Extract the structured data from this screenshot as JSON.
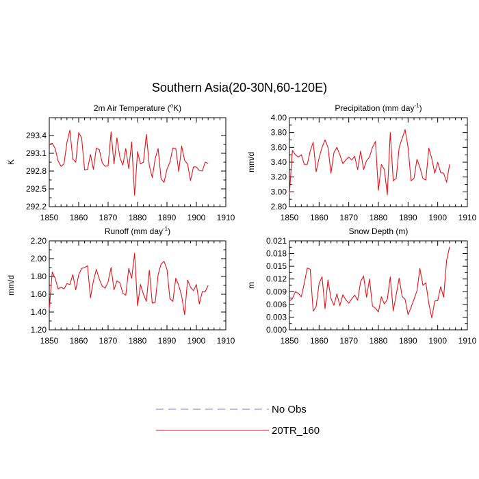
{
  "figure": {
    "title": "Southern Asia(20-30N,60-120E)"
  },
  "legend": [
    {
      "name": "No Obs",
      "color": "#7777ee",
      "style": "dashed"
    },
    {
      "name": "20TR_160",
      "color": "#e8121b",
      "style": "solid"
    }
  ],
  "chart_data": [
    {
      "type": "line",
      "title": "2m Air Temperature (",
      "title_sup": "o",
      "title_end": "K)",
      "xlabel": "",
      "ylabel": "K",
      "xlim": [
        1850,
        1910
      ],
      "ylim": [
        292.2,
        293.7
      ],
      "xticks": [
        1850,
        1860,
        1870,
        1880,
        1890,
        1900,
        1910
      ],
      "xtick_labels": [
        "1850",
        "1860",
        "1870",
        "1880",
        "1890",
        "1900",
        "1910"
      ],
      "yticks": [
        292.2,
        292.5,
        292.8,
        293.1,
        293.4
      ],
      "ytick_labels": [
        "292.2",
        "292.5",
        "292.8",
        "293.1",
        "293.4"
      ],
      "x": [
        1850,
        1851,
        1852,
        1853,
        1854,
        1855,
        1856,
        1857,
        1858,
        1859,
        1860,
        1861,
        1862,
        1863,
        1864,
        1865,
        1866,
        1867,
        1868,
        1869,
        1870,
        1871,
        1872,
        1873,
        1874,
        1875,
        1876,
        1877,
        1878,
        1879,
        1880,
        1881,
        1882,
        1883,
        1884,
        1885,
        1886,
        1887,
        1888,
        1889,
        1890,
        1891,
        1892,
        1893,
        1894,
        1895,
        1896,
        1897,
        1898,
        1899,
        1900,
        1901,
        1902,
        1903,
        1904
      ],
      "series": [
        {
          "name": "20TR_160",
          "values": [
            293.25,
            293.27,
            293.18,
            292.97,
            292.88,
            292.92,
            293.28,
            293.49,
            293.0,
            292.95,
            293.45,
            293.36,
            292.82,
            292.83,
            293.08,
            292.83,
            293.19,
            293.16,
            292.94,
            292.88,
            292.89,
            293.46,
            292.92,
            293.36,
            293.03,
            292.9,
            293.18,
            292.84,
            293.29,
            292.39,
            293.13,
            292.92,
            292.95,
            293.42,
            292.89,
            292.69,
            293.01,
            293.18,
            292.67,
            292.61,
            292.83,
            292.95,
            293.19,
            293.18,
            292.79,
            293.22,
            292.98,
            292.92,
            292.64,
            292.87,
            292.87,
            292.81,
            292.8,
            292.95,
            292.93
          ]
        }
      ]
    },
    {
      "type": "line",
      "title": "Precipitation (mm day",
      "title_sup": "-1",
      "title_end": ")",
      "xlabel": "",
      "ylabel": "mm/d",
      "xlim": [
        1850,
        1910
      ],
      "ylim": [
        2.8,
        4.0
      ],
      "xticks": [
        1850,
        1860,
        1870,
        1880,
        1890,
        1900,
        1910
      ],
      "xtick_labels": [
        "1850",
        "1860",
        "1870",
        "1880",
        "1890",
        "1900",
        "1910"
      ],
      "yticks": [
        2.8,
        3.0,
        3.2,
        3.4,
        3.6,
        3.8,
        4.0
      ],
      "ytick_labels": [
        "2.80",
        "3.00",
        "3.20",
        "3.40",
        "3.60",
        "3.80",
        "4.00"
      ],
      "x": [
        1850,
        1851,
        1852,
        1853,
        1854,
        1855,
        1856,
        1857,
        1858,
        1859,
        1860,
        1861,
        1862,
        1863,
        1864,
        1865,
        1866,
        1867,
        1868,
        1869,
        1870,
        1871,
        1872,
        1873,
        1874,
        1875,
        1876,
        1877,
        1878,
        1879,
        1880,
        1881,
        1882,
        1883,
        1884,
        1885,
        1886,
        1887,
        1888,
        1889,
        1890,
        1891,
        1892,
        1893,
        1894,
        1895,
        1896,
        1897,
        1898,
        1899,
        1900,
        1901,
        1902,
        1903,
        1904
      ],
      "series": [
        {
          "name": "20TR_160",
          "values": [
            2.97,
            3.56,
            3.5,
            3.47,
            3.5,
            3.37,
            3.37,
            3.55,
            3.67,
            3.27,
            3.46,
            3.6,
            3.7,
            3.6,
            3.25,
            3.53,
            3.6,
            3.5,
            3.38,
            3.43,
            3.47,
            3.43,
            3.48,
            3.3,
            3.55,
            3.3,
            3.42,
            3.47,
            3.6,
            3.68,
            3.02,
            3.37,
            3.3,
            2.96,
            3.8,
            3.15,
            3.18,
            3.6,
            3.72,
            3.84,
            3.6,
            3.15,
            3.18,
            3.44,
            3.33,
            3.18,
            3.16,
            3.59,
            3.45,
            3.25,
            3.4,
            3.26,
            3.25,
            3.13,
            3.37
          ]
        }
      ]
    },
    {
      "type": "line",
      "title": "Runoff (mm day",
      "title_sup": "-1",
      "title_end": ")",
      "xlabel": "",
      "ylabel": "mm/d",
      "xlim": [
        1850,
        1910
      ],
      "ylim": [
        1.2,
        2.2
      ],
      "xticks": [
        1850,
        1860,
        1870,
        1880,
        1890,
        1900,
        1910
      ],
      "xtick_labels": [
        "1850",
        "1860",
        "1870",
        "1880",
        "1890",
        "1900",
        "1910"
      ],
      "yticks": [
        1.2,
        1.4,
        1.6,
        1.8,
        2.0,
        2.2
      ],
      "ytick_labels": [
        "1.20",
        "1.40",
        "1.60",
        "1.80",
        "2.00",
        "2.20"
      ],
      "x": [
        1850,
        1851,
        1852,
        1853,
        1854,
        1855,
        1856,
        1857,
        1858,
        1859,
        1860,
        1861,
        1862,
        1863,
        1864,
        1865,
        1866,
        1867,
        1868,
        1869,
        1870,
        1871,
        1872,
        1873,
        1874,
        1875,
        1876,
        1877,
        1878,
        1879,
        1880,
        1881,
        1882,
        1883,
        1884,
        1885,
        1886,
        1887,
        1888,
        1889,
        1890,
        1891,
        1892,
        1893,
        1894,
        1895,
        1896,
        1897,
        1898,
        1899,
        1900,
        1901,
        1902,
        1903,
        1904
      ],
      "series": [
        {
          "name": "20TR_160",
          "values": [
            1.43,
            1.85,
            1.78,
            1.66,
            1.68,
            1.66,
            1.72,
            1.71,
            1.82,
            1.65,
            1.82,
            1.89,
            1.9,
            1.92,
            1.56,
            1.75,
            1.88,
            1.77,
            1.69,
            1.67,
            1.74,
            1.9,
            1.65,
            1.75,
            1.73,
            1.61,
            1.59,
            1.89,
            1.78,
            2.06,
            1.47,
            1.71,
            1.6,
            1.52,
            1.87,
            1.5,
            1.51,
            1.82,
            1.94,
            1.97,
            1.88,
            1.55,
            1.52,
            1.78,
            1.7,
            1.58,
            1.37,
            1.76,
            1.68,
            1.64,
            1.71,
            1.49,
            1.63,
            1.63,
            1.7
          ]
        }
      ]
    },
    {
      "type": "line",
      "title": "Snow Depth (m)",
      "title_sup": "",
      "title_end": "",
      "xlabel": "",
      "ylabel": "m",
      "xlim": [
        1850,
        1910
      ],
      "ylim": [
        0.0,
        0.021
      ],
      "xticks": [
        1850,
        1860,
        1870,
        1880,
        1890,
        1900,
        1910
      ],
      "xtick_labels": [
        "1850",
        "1860",
        "1870",
        "1880",
        "1890",
        "1900",
        "1910"
      ],
      "yticks": [
        0.0,
        0.003,
        0.006,
        0.009,
        0.012,
        0.015,
        0.018,
        0.021
      ],
      "ytick_labels": [
        "0.000",
        "0.003",
        "0.006",
        "0.009",
        "0.012",
        "0.015",
        "0.018",
        "0.021"
      ],
      "x": [
        1850,
        1851,
        1852,
        1853,
        1854,
        1855,
        1856,
        1857,
        1858,
        1859,
        1860,
        1861,
        1862,
        1863,
        1864,
        1865,
        1866,
        1867,
        1868,
        1869,
        1870,
        1871,
        1872,
        1873,
        1874,
        1875,
        1876,
        1877,
        1878,
        1879,
        1880,
        1881,
        1882,
        1883,
        1884,
        1885,
        1886,
        1887,
        1888,
        1889,
        1890,
        1891,
        1892,
        1893,
        1894,
        1895,
        1896,
        1897,
        1898,
        1899,
        1900,
        1901,
        1902,
        1903,
        1904
      ],
      "series": [
        {
          "name": "20TR_160",
          "values": [
            0.0068,
            0.0074,
            0.009,
            0.0086,
            0.0078,
            0.011,
            0.0146,
            0.0143,
            0.0044,
            0.0055,
            0.011,
            0.0125,
            0.005,
            0.0118,
            0.0074,
            0.0058,
            0.0085,
            0.0057,
            0.0083,
            0.0071,
            0.0063,
            0.0073,
            0.0082,
            0.007,
            0.0114,
            0.0127,
            0.0077,
            0.012,
            0.0056,
            0.0051,
            0.0042,
            0.0078,
            0.0061,
            0.0072,
            0.0125,
            0.0045,
            0.0083,
            0.0122,
            0.0079,
            0.0072,
            0.0036,
            0.0053,
            0.0072,
            0.0092,
            0.0145,
            0.0105,
            0.0111,
            0.0062,
            0.0028,
            0.0068,
            0.0069,
            0.0102,
            0.0077,
            0.0164,
            0.0196
          ]
        }
      ]
    }
  ]
}
